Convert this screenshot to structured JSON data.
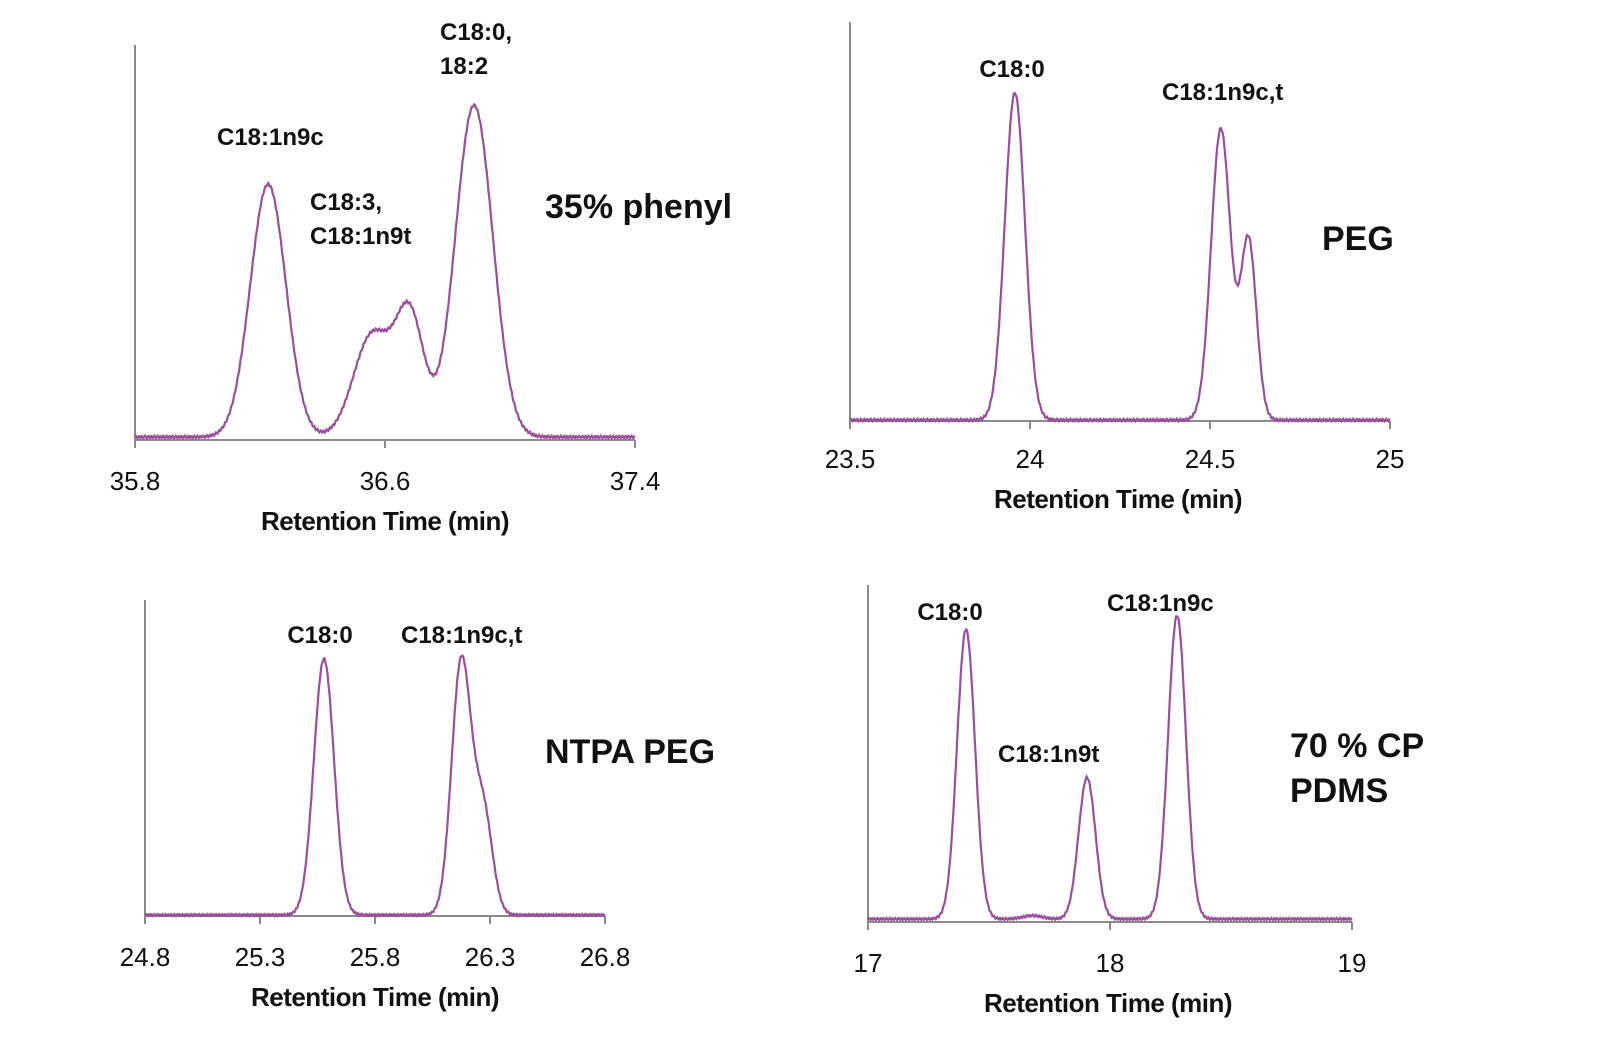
{
  "chart_data": [
    {
      "type": "line",
      "panel_label": "35% phenyl",
      "xlabel": "Retention Time (min)",
      "xlim": [
        35.8,
        37.4
      ],
      "xticks": [
        "35.8",
        "36.6",
        "37.4"
      ],
      "color": "#9a4f9c",
      "peaks": [
        {
          "rt": 36.226,
          "rel_height": 0.64,
          "sigma": 0.057
        },
        {
          "rt": 36.56,
          "rel_height": 0.26,
          "sigma": 0.06
        },
        {
          "rt": 36.68,
          "rel_height": 0.3,
          "sigma": 0.045
        },
        {
          "rt": 36.885,
          "rel_height": 0.84,
          "sigma": 0.06
        }
      ],
      "annotations": [
        {
          "lines": [
            "C18:1n9c"
          ]
        },
        {
          "lines": [
            "C18:3,",
            "C18:1n9t"
          ]
        },
        {
          "lines": [
            "C18:0,",
            "18:2"
          ]
        }
      ]
    },
    {
      "type": "line",
      "panel_label": "PEG",
      "xlabel": "Retention Time (min)",
      "xlim": [
        23.5,
        25
      ],
      "xticks": [
        "23.5",
        "24",
        "24.5",
        "25"
      ],
      "color": "#9a4f9c",
      "peaks": [
        {
          "rt": 23.958,
          "rel_height": 0.82,
          "sigma": 0.028
        },
        {
          "rt": 24.53,
          "rel_height": 0.73,
          "sigma": 0.027
        },
        {
          "rt": 24.607,
          "rel_height": 0.45,
          "sigma": 0.022
        }
      ],
      "annotations": [
        {
          "lines": [
            "C18:0"
          ]
        },
        {
          "lines": [
            "C18:1n9c,t"
          ]
        }
      ]
    },
    {
      "type": "line",
      "panel_label": "NTPA PEG",
      "xlabel": "Retention Time (min)",
      "xlim": [
        24.8,
        26.8
      ],
      "xticks": [
        "24.8",
        "25.3",
        "25.8",
        "26.3",
        "26.8"
      ],
      "color": "#9a4f9c",
      "peaks": [
        {
          "rt": 25.578,
          "rel_height": 0.81,
          "sigma": 0.044
        },
        {
          "rt": 26.175,
          "rel_height": 0.8,
          "sigma": 0.042
        },
        {
          "rt": 26.27,
          "rel_height": 0.33,
          "sigma": 0.04
        }
      ],
      "annotations": [
        {
          "lines": [
            "C18:0"
          ]
        },
        {
          "lines": [
            "C18:1n9c,t"
          ]
        }
      ]
    },
    {
      "type": "line",
      "panel_label": "70 % CP PDMS",
      "panel_label_lines": [
        "70 % CP",
        "PDMS"
      ],
      "xlabel": "Retention Time (min)",
      "xlim": [
        17,
        19
      ],
      "xticks": [
        "17",
        "18",
        "19"
      ],
      "color": "#9a4f9c",
      "peaks": [
        {
          "rt": 17.405,
          "rel_height": 0.86,
          "sigma": 0.037
        },
        {
          "rt": 17.68,
          "rel_height": 0.01,
          "sigma": 0.04
        },
        {
          "rt": 17.905,
          "rel_height": 0.42,
          "sigma": 0.035
        },
        {
          "rt": 18.277,
          "rel_height": 0.9,
          "sigma": 0.037
        }
      ],
      "annotations": [
        {
          "lines": [
            "C18:0"
          ]
        },
        {
          "lines": [
            "C18:1n9t"
          ]
        },
        {
          "lines": [
            "C18:1n9c"
          ]
        }
      ]
    }
  ]
}
